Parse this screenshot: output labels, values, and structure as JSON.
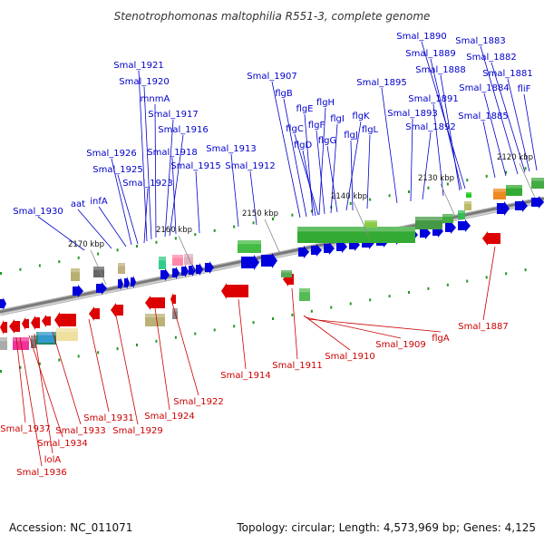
{
  "title": "Stenotrophomonas maltophilia R551-3, complete genome",
  "footer": {
    "accession": "Accession: NC_011071",
    "summary": "Topology: circular; Length: 4,573,969 bp; Genes: 4,125"
  },
  "colors": {
    "forward": "#0000dd",
    "reverse": "#dd0000",
    "backbone": "#888888"
  },
  "scale_labels": [
    "2120 kbp",
    "2130 kbp",
    "2140 kbp",
    "2150 kbp",
    "2160 kbp",
    "2170 kbp"
  ],
  "forward_genes": [
    "Smal_1930",
    "aat",
    "infA",
    "Smal_1926",
    "Smal_1925",
    "Smal_1923",
    "Smal_1921",
    "Smal_1920",
    "mnmA",
    "Smal_1917",
    "Smal_1916",
    "Smal_1918",
    "Smal_1915",
    "Smal_1913",
    "Smal_1912",
    "Smal_1907",
    "flgB",
    "flgE",
    "flgH",
    "flgC",
    "flgF",
    "flgI",
    "flgK",
    "flgD",
    "flgG",
    "flgJ",
    "flgL",
    "Smal_1895",
    "Smal_1893",
    "Smal_1892",
    "Smal_1891",
    "Smal_1890",
    "Smal_1889",
    "Smal_1888",
    "Smal_1885",
    "Smal_1884",
    "Smal_1883",
    "Smal_1882",
    "Smal_1881",
    "fliF"
  ],
  "reverse_genes": [
    "Smal_1937",
    "Smal_1934",
    "Smal_1936",
    "lolA",
    "Smal_1933",
    "Smal_1931",
    "Smal_1929",
    "Smal_1924",
    "Smal_1922",
    "Smal_1914",
    "Smal_1911",
    "Smal_1910",
    "Smal_1909",
    "flgA",
    "Smal_1887"
  ]
}
